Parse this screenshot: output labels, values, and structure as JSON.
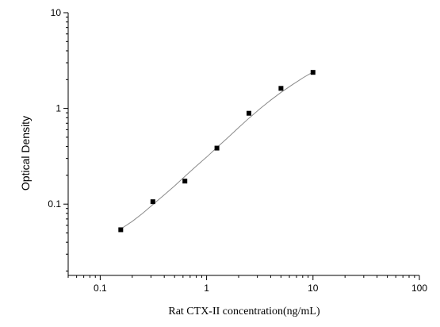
{
  "chart_data": {
    "type": "scatter",
    "title": "",
    "xlabel": "Rat CTX-II  concentration(ng/mL)",
    "ylabel": "Optical Density",
    "x_scale": "log",
    "y_scale": "log",
    "xlim": [
      0.05,
      100
    ],
    "ylim": [
      0.018,
      10
    ],
    "x_ticks": [
      {
        "value": 0.1,
        "label": "0.1"
      },
      {
        "value": 1,
        "label": "1"
      },
      {
        "value": 10,
        "label": "10"
      },
      {
        "value": 100,
        "label": "100"
      }
    ],
    "y_ticks": [
      {
        "value": 0.1,
        "label": "0.1"
      },
      {
        "value": 1,
        "label": "1"
      },
      {
        "value": 10,
        "label": "10"
      }
    ],
    "grid": false,
    "legend": false,
    "series": [
      {
        "x": [
          0.156,
          0.3125,
          0.625,
          1.25,
          2.5,
          5,
          10
        ],
        "y": [
          0.054,
          0.106,
          0.174,
          0.385,
          0.89,
          1.62,
          2.38
        ],
        "marker": "square",
        "color": "#000000"
      }
    ],
    "fit_curve": {
      "x": [
        0.156,
        0.2,
        0.25,
        0.3125,
        0.4,
        0.5,
        0.625,
        0.8,
        1.0,
        1.25,
        1.6,
        2.0,
        2.5,
        3.2,
        4.0,
        5.0,
        6.3,
        8.0,
        10
      ],
      "y": [
        0.055,
        0.066,
        0.08,
        0.099,
        0.125,
        0.155,
        0.195,
        0.25,
        0.31,
        0.39,
        0.5,
        0.63,
        0.79,
        1.0,
        1.22,
        1.47,
        1.75,
        2.08,
        2.4
      ],
      "color": "#8a8a8a"
    }
  }
}
